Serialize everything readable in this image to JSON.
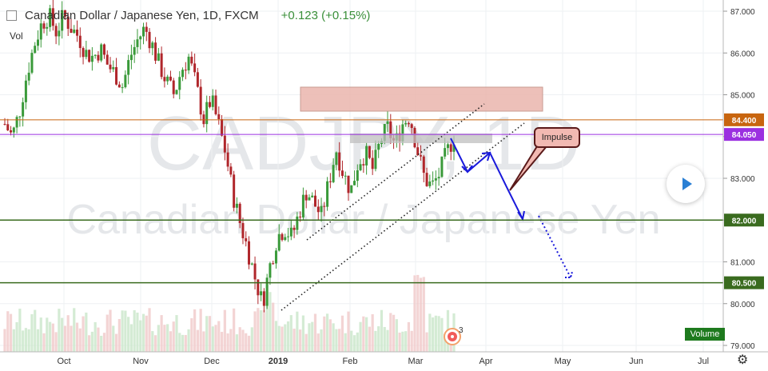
{
  "header": {
    "title": "Canadian Dollar / Japanese Yen, 1D, FXCM",
    "change": "+0.123 (+0.15%)"
  },
  "volume_label": "Vol",
  "watermark": {
    "line1": "CADJPY, 1D",
    "line2": "Canadian Dollar / Japanese Yen"
  },
  "volume_badge": "Volume",
  "annotation": {
    "impulse_label": "Impulse"
  },
  "event_badge": "3",
  "colors": {
    "up": "#3a9a3a",
    "down": "#b0262b",
    "orange_level": "#c8650f",
    "purple_level": "#9b30e0",
    "green_level": "#3a6b1f",
    "arrow": "#1a1adb"
  },
  "chart_data": {
    "type": "candlestick",
    "symbol": "CADJPY",
    "ylim": [
      78.9,
      87.2
    ],
    "y_ticks": [
      "87.000",
      "86.000",
      "85.000",
      "84.000",
      "83.000",
      "82.000",
      "81.000",
      "80.000",
      "79.000"
    ],
    "y_tick_values": [
      87,
      86,
      85,
      84,
      83,
      82,
      81,
      80,
      79
    ],
    "x_ticks": [
      "Oct",
      "Nov",
      "Dec",
      "2019",
      "Feb",
      "Mar",
      "Apr",
      "May",
      "Jun",
      "Jul"
    ],
    "levels": [
      {
        "label": "84.400",
        "value": 84.4,
        "color": "orange"
      },
      {
        "label": "84.050",
        "value": 84.05,
        "color": "purple"
      },
      {
        "label": "82.000",
        "value": 82.0,
        "color": "green"
      },
      {
        "label": "80.500",
        "value": 80.5,
        "color": "green"
      }
    ],
    "price_path": [
      [
        0,
        84.3
      ],
      [
        1,
        84.0
      ],
      [
        2,
        84.6
      ],
      [
        3,
        85.5
      ],
      [
        4,
        86.2
      ],
      [
        5,
        86.7
      ],
      [
        6,
        86.9
      ],
      [
        7,
        86.5
      ],
      [
        8,
        86.9
      ],
      [
        9,
        86.6
      ],
      [
        10,
        86.4
      ],
      [
        11,
        86.0
      ],
      [
        12,
        85.9
      ],
      [
        13,
        86.1
      ],
      [
        14,
        85.7
      ],
      [
        15,
        85.5
      ],
      [
        16,
        85.2
      ],
      [
        17,
        85.9
      ],
      [
        18,
        86.3
      ],
      [
        19,
        86.6
      ],
      [
        20,
        86.2
      ],
      [
        21,
        85.7
      ],
      [
        22,
        85.3
      ],
      [
        23,
        85.0
      ],
      [
        24,
        85.6
      ],
      [
        25,
        85.9
      ],
      [
        26,
        85.2
      ],
      [
        27,
        84.4
      ],
      [
        28,
        84.9
      ],
      [
        29,
        84.3
      ],
      [
        30,
        83.6
      ],
      [
        31,
        82.6
      ],
      [
        32,
        81.9
      ],
      [
        33,
        81.3
      ],
      [
        34,
        80.6
      ],
      [
        35,
        80.0
      ],
      [
        36,
        80.9
      ],
      [
        37,
        81.6
      ],
      [
        38,
        81.8
      ],
      [
        39,
        81.6
      ],
      [
        40,
        82.2
      ],
      [
        41,
        82.7
      ],
      [
        42,
        82.4
      ],
      [
        43,
        82.1
      ],
      [
        44,
        82.9
      ],
      [
        45,
        83.7
      ],
      [
        46,
        83.1
      ],
      [
        47,
        82.7
      ],
      [
        48,
        83.4
      ],
      [
        49,
        83.6
      ],
      [
        50,
        83.2
      ],
      [
        51,
        83.9
      ],
      [
        52,
        84.2
      ],
      [
        53,
        83.8
      ],
      [
        54,
        84.3
      ],
      [
        55,
        84.5
      ],
      [
        56,
        83.7
      ],
      [
        57,
        83.0
      ],
      [
        58,
        82.8
      ],
      [
        59,
        83.1
      ],
      [
        60,
        83.6
      ],
      [
        61,
        84.0
      ]
    ]
  }
}
